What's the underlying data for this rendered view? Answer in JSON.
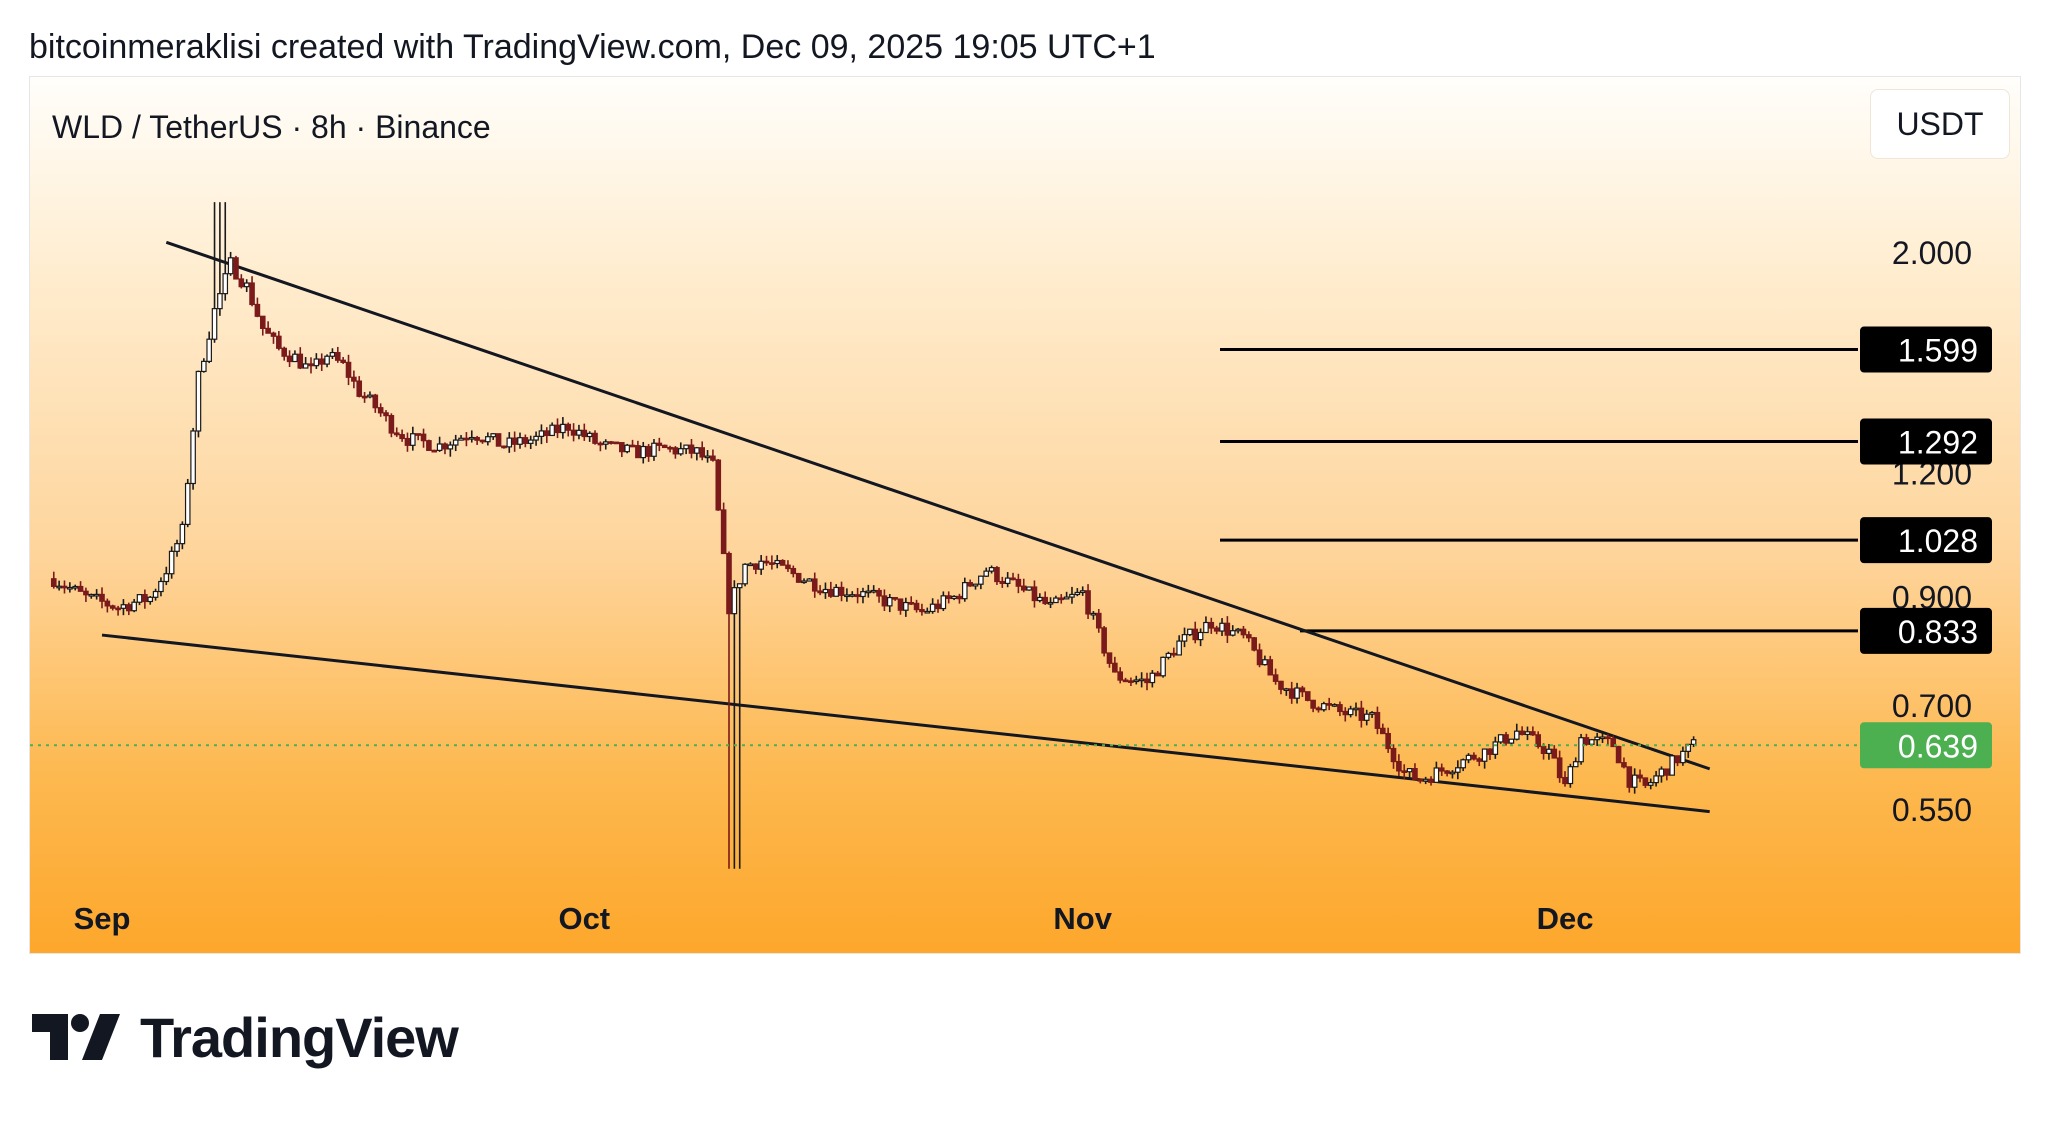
{
  "header": {
    "attribution": "bitcoinmeraklisi created with TradingView.com, Dec 09, 2025 19:05 UTC+1"
  },
  "chart_panel": {
    "symbol_title": "WLD / TetherUS · 8h · Binance",
    "currency_button": "USDT"
  },
  "footer": {
    "brand": "TradingView"
  },
  "colors": {
    "candle_up": "#1a1a1a",
    "candle_down": "#7a1a1a",
    "current_price_label": "#4caf50",
    "level_label_bg": "#000000",
    "trendline": "#131722"
  },
  "chart_data": {
    "type": "candlestick",
    "title": "WLD / TetherUS · 8h · Binance",
    "xlabel": "",
    "ylabel": "",
    "y_scale": "log",
    "x_ticks": [
      "Sep",
      "Oct",
      "Nov",
      "Dec"
    ],
    "y_ticks": [
      "2.000",
      "1.200",
      "0.900",
      "0.700",
      "0.550"
    ],
    "y_tick_values": [
      2.0,
      1.2,
      0.9,
      0.7,
      0.55
    ],
    "current_price": {
      "value": 0.639,
      "label": "0.639"
    },
    "horizontal_levels": [
      {
        "value": 1.599,
        "label": "1.599"
      },
      {
        "value": 1.292,
        "label": "1.292"
      },
      {
        "value": 1.028,
        "label": "1.028"
      },
      {
        "value": 0.833,
        "label": "0.833"
      }
    ],
    "trendlines": [
      {
        "name": "upper",
        "from": {
          "date": "2025-09-05",
          "price": 2.05
        },
        "to": {
          "date": "2025-12-10",
          "price": 0.605
        }
      },
      {
        "name": "lower",
        "from": {
          "date": "2025-09-01",
          "price": 0.825
        },
        "to": {
          "date": "2025-12-10",
          "price": 0.548
        }
      }
    ],
    "series": [
      {
        "x": [
          "2025-08-29",
          "2025-08-31",
          "2025-09-02",
          "2025-09-04",
          "2025-09-05",
          "2025-09-06",
          "2025-09-07",
          "2025-09-08",
          "2025-09-09",
          "2025-09-10",
          "2025-09-11",
          "2025-09-12",
          "2025-09-13",
          "2025-09-14",
          "2025-09-15",
          "2025-09-16",
          "2025-09-17",
          "2025-09-18",
          "2025-09-19",
          "2025-09-20",
          "2025-09-22",
          "2025-09-24",
          "2025-09-26",
          "2025-09-28",
          "2025-09-30",
          "2025-10-02",
          "2025-10-04",
          "2025-10-06",
          "2025-10-08",
          "2025-10-09",
          "2025-10-10",
          "2025-10-11",
          "2025-10-12",
          "2025-10-14",
          "2025-10-16",
          "2025-10-18",
          "2025-10-20",
          "2025-10-22",
          "2025-10-24",
          "2025-10-26",
          "2025-10-28",
          "2025-10-30",
          "2025-11-01",
          "2025-11-03",
          "2025-11-05",
          "2025-11-07",
          "2025-11-09",
          "2025-11-11",
          "2025-11-13",
          "2025-11-15",
          "2025-11-17",
          "2025-11-19",
          "2025-11-21",
          "2025-11-22",
          "2025-11-24",
          "2025-11-26",
          "2025-11-28",
          "2025-11-30",
          "2025-12-01",
          "2025-12-02",
          "2025-12-04",
          "2025-12-05",
          "2025-12-06",
          "2025-12-07",
          "2025-12-08",
          "2025-12-09"
        ],
        "values": [
          0.94,
          0.9,
          0.88,
          0.9,
          0.96,
          1.05,
          1.5,
          1.75,
          1.95,
          1.85,
          1.68,
          1.6,
          1.57,
          1.52,
          1.58,
          1.54,
          1.45,
          1.4,
          1.34,
          1.3,
          1.28,
          1.32,
          1.28,
          1.3,
          1.34,
          1.28,
          1.26,
          1.27,
          1.26,
          1.22,
          0.88,
          0.97,
          0.98,
          0.95,
          0.92,
          0.91,
          0.89,
          0.87,
          0.9,
          0.96,
          0.92,
          0.88,
          0.91,
          0.75,
          0.74,
          0.81,
          0.85,
          0.82,
          0.74,
          0.71,
          0.69,
          0.68,
          0.6,
          0.59,
          0.61,
          0.63,
          0.66,
          0.63,
          0.58,
          0.65,
          0.64,
          0.59,
          0.58,
          0.6,
          0.62,
          0.639
        ]
      }
    ]
  }
}
